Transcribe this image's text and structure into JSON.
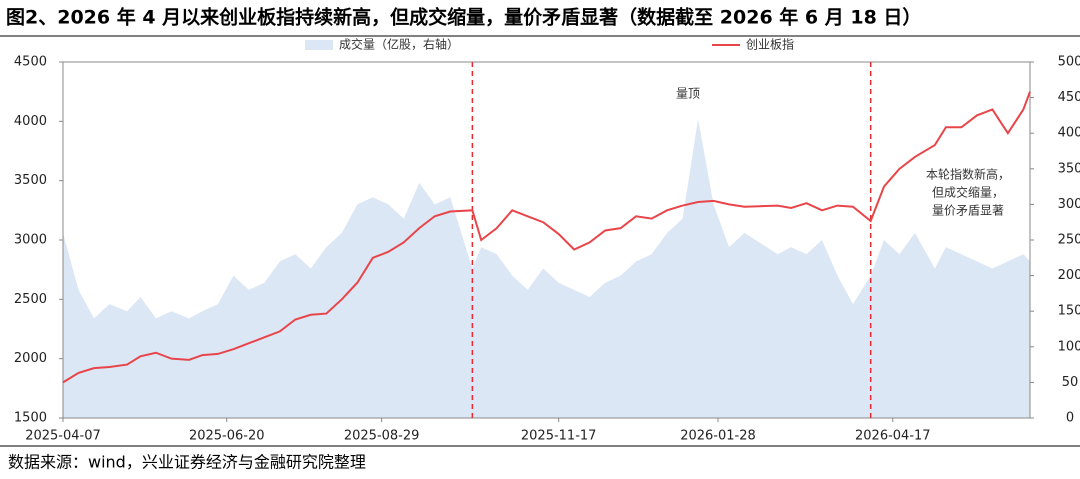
{
  "chart_data": {
    "type": "area-line",
    "title": "图2、2026 年 4 月以来创业板指持续新高，但成交缩量，量价矛盾显著（数据截至 2026 年 6 月 18 日）",
    "source": "数据来源：wind，兴业证券经济与金融研究院整理",
    "x": [
      "2025-04-07",
      "2025-04-14",
      "2025-04-21",
      "2025-04-28",
      "2025-05-06",
      "2025-05-12",
      "2025-05-19",
      "2025-05-26",
      "2025-06-03",
      "2025-06-09",
      "2025-06-16",
      "2025-06-23",
      "2025-06-30",
      "2025-07-07",
      "2025-07-14",
      "2025-07-21",
      "2025-07-28",
      "2025-08-04",
      "2025-08-11",
      "2025-08-18",
      "2025-08-25",
      "2025-09-01",
      "2025-09-08",
      "2025-09-15",
      "2025-09-22",
      "2025-09-29",
      "2025-10-09",
      "2025-10-13",
      "2025-10-20",
      "2025-10-27",
      "2025-11-03",
      "2025-11-10",
      "2025-11-17",
      "2025-11-24",
      "2025-12-01",
      "2025-12-08",
      "2025-12-15",
      "2025-12-22",
      "2025-12-29",
      "2026-01-05",
      "2026-01-12",
      "2026-01-19",
      "2026-01-26",
      "2026-02-02",
      "2026-02-09",
      "2026-02-24",
      "2026-03-02",
      "2026-03-09",
      "2026-03-16",
      "2026-03-23",
      "2026-03-30",
      "2026-04-07",
      "2026-04-13",
      "2026-04-20",
      "2026-04-27",
      "2026-05-06",
      "2026-05-11",
      "2026-05-18",
      "2026-05-25",
      "2026-06-01",
      "2026-06-08",
      "2026-06-15",
      "2026-06-18"
    ],
    "series": [
      {
        "name": "成交量（亿股，右轴）",
        "color": "#dce7f5",
        "axis": "y2",
        "kind": "area",
        "values": [
          260,
          180,
          140,
          160,
          150,
          170,
          140,
          150,
          140,
          150,
          160,
          200,
          180,
          190,
          220,
          230,
          210,
          240,
          260,
          300,
          310,
          300,
          280,
          330,
          300,
          310,
          210,
          240,
          230,
          200,
          180,
          210,
          190,
          180,
          170,
          190,
          200,
          220,
          230,
          260,
          280,
          420,
          300,
          240,
          260,
          230,
          240,
          230,
          250,
          200,
          160,
          200,
          250,
          230,
          260,
          210,
          240,
          230,
          220,
          210,
          220,
          230,
          220
        ]
      },
      {
        "name": "创业板指",
        "color": "#e8454a",
        "kind": "line",
        "values": [
          1800,
          1880,
          1920,
          1930,
          1950,
          2020,
          2050,
          2000,
          1990,
          2030,
          2040,
          2080,
          2130,
          2180,
          2230,
          2330,
          2370,
          2380,
          2500,
          2640,
          2850,
          2900,
          2980,
          3100,
          3200,
          3240,
          3250,
          3000,
          3100,
          3250,
          3200,
          3150,
          3050,
          2920,
          2980,
          3080,
          3100,
          3200,
          3180,
          3250,
          3290,
          3320,
          3330,
          3300,
          3280,
          3290,
          3270,
          3310,
          3250,
          3290,
          3280,
          3160,
          3450,
          3600,
          3700,
          3800,
          3950,
          3950,
          4050,
          4100,
          3900,
          4100,
          4250
        ]
      }
    ],
    "xlim": [
      "2025-04-07",
      "2026-06-18"
    ],
    "xticks": [
      "2025-04-07",
      "2025-06-20",
      "2025-08-29",
      "2025-11-17",
      "2026-01-28",
      "2026-04-17"
    ],
    "ylim": [
      1500,
      4500
    ],
    "yticks": [
      1500,
      2000,
      2500,
      3000,
      3500,
      4000,
      4500
    ],
    "y2lim": [
      0,
      500
    ],
    "y2ticks": [
      0,
      50,
      100,
      150,
      200,
      250,
      300,
      350,
      400,
      450,
      500
    ],
    "vlines": [
      "2025-10-09",
      "2026-04-07"
    ],
    "vline_color": "#e8292f",
    "annotations": [
      [
        "量顶"
      ],
      [
        "本轮指数新高，",
        "但成交缩量，",
        "量价矛盾显著"
      ]
    ]
  }
}
